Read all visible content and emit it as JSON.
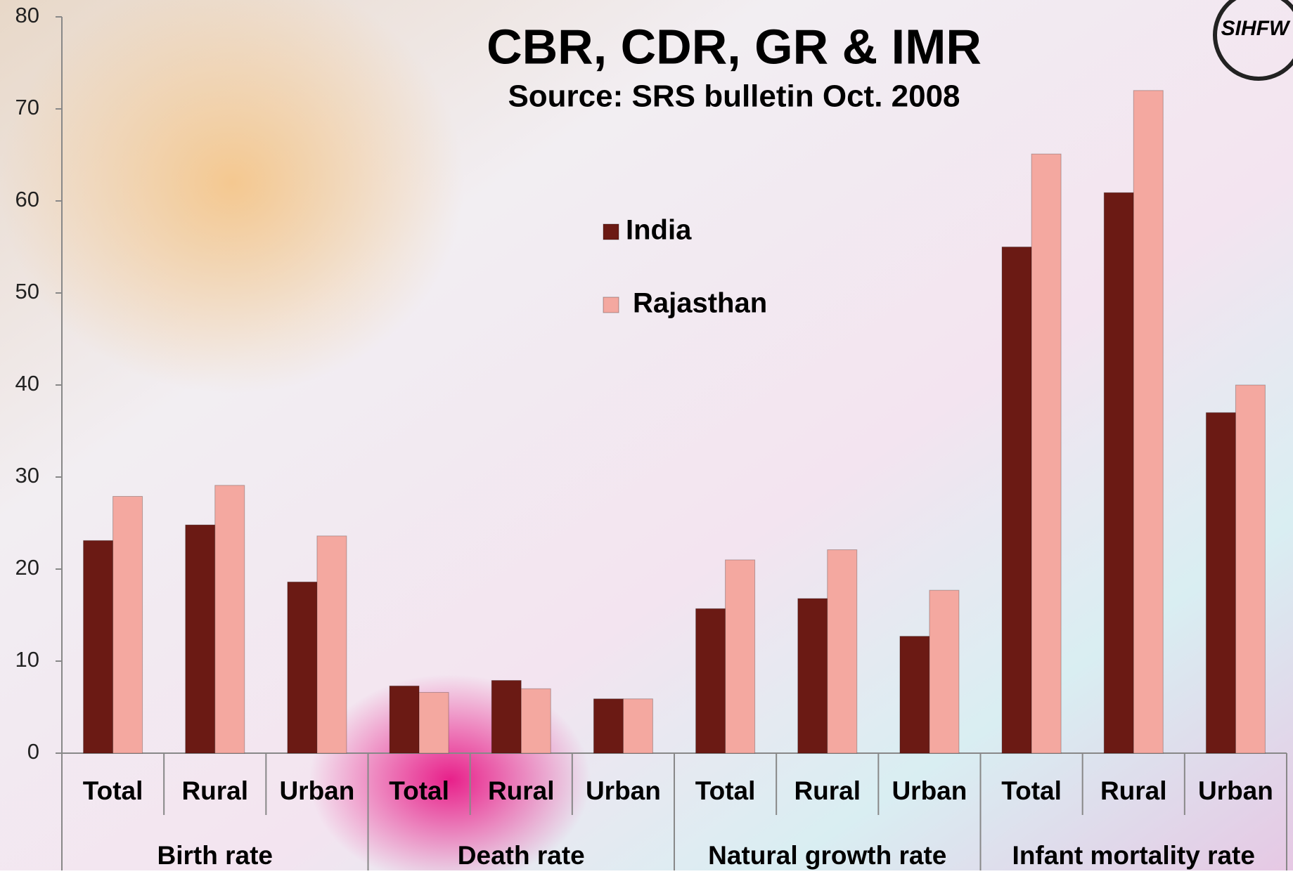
{
  "chart_data": {
    "type": "bar",
    "title": "CBR, CDR, GR & IMR",
    "subtitle": "Source: SRS  bulletin Oct. 2008",
    "logo": "SIHFW",
    "categories": [
      "Total",
      "Rural",
      "Urban",
      "Total",
      "Rural",
      "Urban",
      "Total",
      "Rural",
      "Urban",
      "Total",
      "Rural",
      "Urban"
    ],
    "groups": [
      "Birth rate",
      "Death rate",
      "Natural growth rate",
      "Infant mortality rate"
    ],
    "series": [
      {
        "name": "India",
        "color": "#6b1a14",
        "values": [
          23.1,
          24.8,
          18.6,
          7.3,
          7.9,
          5.9,
          15.7,
          16.8,
          12.7,
          55,
          60.9,
          37
        ]
      },
      {
        "name": "Rajasthan",
        "color": "#f4a8a0",
        "values": [
          27.9,
          29.1,
          23.6,
          6.6,
          7.0,
          5.9,
          21.0,
          22.1,
          17.7,
          65.1,
          72,
          40
        ]
      }
    ],
    "ylim": [
      0,
      80
    ],
    "yticks": [
      0,
      10,
      20,
      30,
      40,
      50,
      60,
      70,
      80
    ],
    "grid": false
  }
}
